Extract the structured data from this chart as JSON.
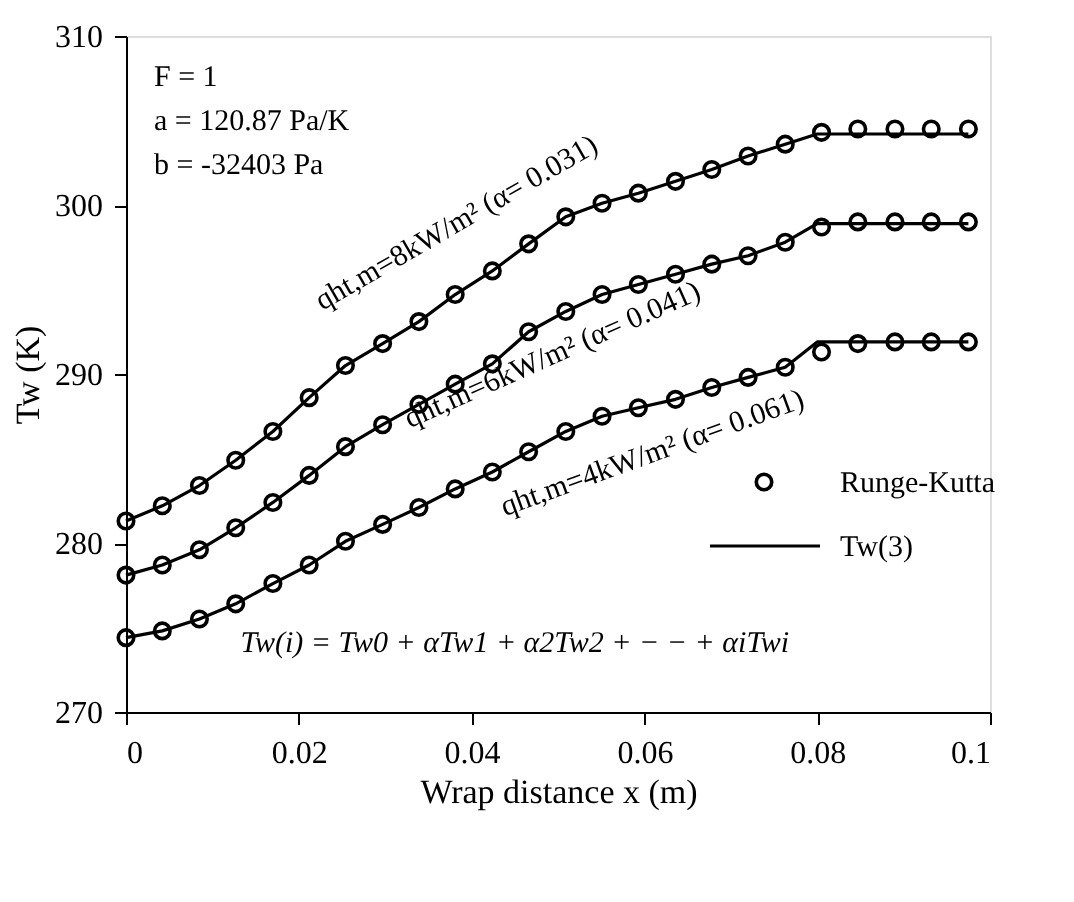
{
  "chart_data": {
    "type": "scatter",
    "xlabel": "Wrap distance x (m)",
    "ylabel": "Tw (K)",
    "xlim": [
      0,
      0.1
    ],
    "xticks": [
      0,
      0.02,
      0.04,
      0.06,
      0.08,
      0.1
    ],
    "ylim": [
      270,
      310
    ],
    "yticks": [
      270,
      280,
      290,
      300,
      310
    ],
    "grid": false,
    "legend": "bottom right",
    "x": [
      0,
      0.0042,
      0.0085,
      0.0127,
      0.017,
      0.0212,
      0.0254,
      0.0297,
      0.0339,
      0.0381,
      0.0424,
      0.0466,
      0.0509,
      0.0551,
      0.0593,
      0.0636,
      0.0678,
      0.072,
      0.0763,
      0.0805,
      0.0847,
      0.089,
      0.0932,
      0.0975
    ],
    "series": [
      {
        "name": "Runge-Kutta",
        "marker": "circle",
        "color": "#000000",
        "values": [
          281.3,
          282.2,
          283.4,
          284.9,
          286.6,
          288.6,
          290.5,
          291.8,
          293.1,
          294.7,
          296.1,
          297.7,
          299.3,
          300.1,
          300.7,
          301.4,
          302.1,
          302.9,
          303.6,
          304.3,
          304.5,
          304.5,
          304.5,
          304.5
        ]
      },
      {
        "marker": "circle",
        "color": "#000000",
        "values": [
          278.1,
          278.7,
          279.6,
          280.9,
          282.4,
          284.0,
          285.7,
          287.0,
          288.2,
          289.4,
          290.6,
          292.5,
          293.7,
          294.7,
          295.3,
          295.9,
          296.5,
          297.0,
          297.8,
          298.7,
          299.0,
          299.0,
          299.0,
          299.0
        ]
      },
      {
        "marker": "circle",
        "color": "#000000",
        "values": [
          274.4,
          274.8,
          275.5,
          276.4,
          277.6,
          278.7,
          280.1,
          281.1,
          282.1,
          283.2,
          284.2,
          285.4,
          286.6,
          287.5,
          288.0,
          288.5,
          289.2,
          289.8,
          290.4,
          291.3,
          291.8,
          291.9,
          291.9,
          291.9
        ]
      },
      {
        "name": "Tw(3)",
        "type": "line",
        "line_style": "solid",
        "color": "#000000",
        "x": [
          0,
          0.0042,
          0.0085,
          0.0127,
          0.017,
          0.0212,
          0.0254,
          0.0297,
          0.0339,
          0.0381,
          0.0424,
          0.0466,
          0.0509,
          0.0551,
          0.0593,
          0.0636,
          0.0678,
          0.072,
          0.0763,
          0.08,
          0.0975
        ],
        "values": [
          281.3,
          282.2,
          283.4,
          284.9,
          286.6,
          288.6,
          290.5,
          291.8,
          293.1,
          294.7,
          296.1,
          297.7,
          299.3,
          300.1,
          300.7,
          301.4,
          302.1,
          302.9,
          303.6,
          304.2,
          304.2
        ]
      },
      {
        "type": "line",
        "line_style": "solid",
        "color": "#000000",
        "x": [
          0,
          0.0042,
          0.0085,
          0.0127,
          0.017,
          0.0212,
          0.0254,
          0.0297,
          0.0339,
          0.0381,
          0.0424,
          0.0466,
          0.0509,
          0.0551,
          0.0593,
          0.0636,
          0.0678,
          0.072,
          0.0763,
          0.08,
          0.0975
        ],
        "values": [
          278.1,
          278.7,
          279.6,
          280.9,
          282.4,
          284.0,
          285.7,
          287.0,
          288.2,
          289.4,
          290.6,
          292.5,
          293.7,
          294.7,
          295.3,
          295.9,
          296.5,
          297.0,
          297.8,
          298.9,
          298.9
        ]
      },
      {
        "type": "line",
        "line_style": "solid",
        "color": "#000000",
        "x": [
          0,
          0.0042,
          0.0085,
          0.0127,
          0.017,
          0.0212,
          0.0254,
          0.0297,
          0.0339,
          0.0381,
          0.0424,
          0.0466,
          0.0509,
          0.0551,
          0.0593,
          0.0636,
          0.0678,
          0.072,
          0.0763,
          0.08,
          0.0975
        ],
        "values": [
          274.4,
          274.8,
          275.5,
          276.4,
          277.6,
          278.7,
          280.1,
          281.1,
          282.1,
          283.2,
          284.2,
          285.4,
          286.6,
          287.5,
          288.0,
          288.5,
          289.2,
          289.8,
          290.4,
          291.9,
          291.9
        ]
      }
    ],
    "annotations": [
      "F = 1",
      "a = 120.87 Pa/K",
      "b = -32403 Pa",
      "qht,m=8kW/m² (α= 0.031)",
      "qht,m=6kW/m² (α= 0.041)",
      "qht,m=4kW/m² (α= 0.061)",
      "Tw(i) = Tw0 + αTw1 + α2Tw2 + − − + αiTwi"
    ]
  }
}
